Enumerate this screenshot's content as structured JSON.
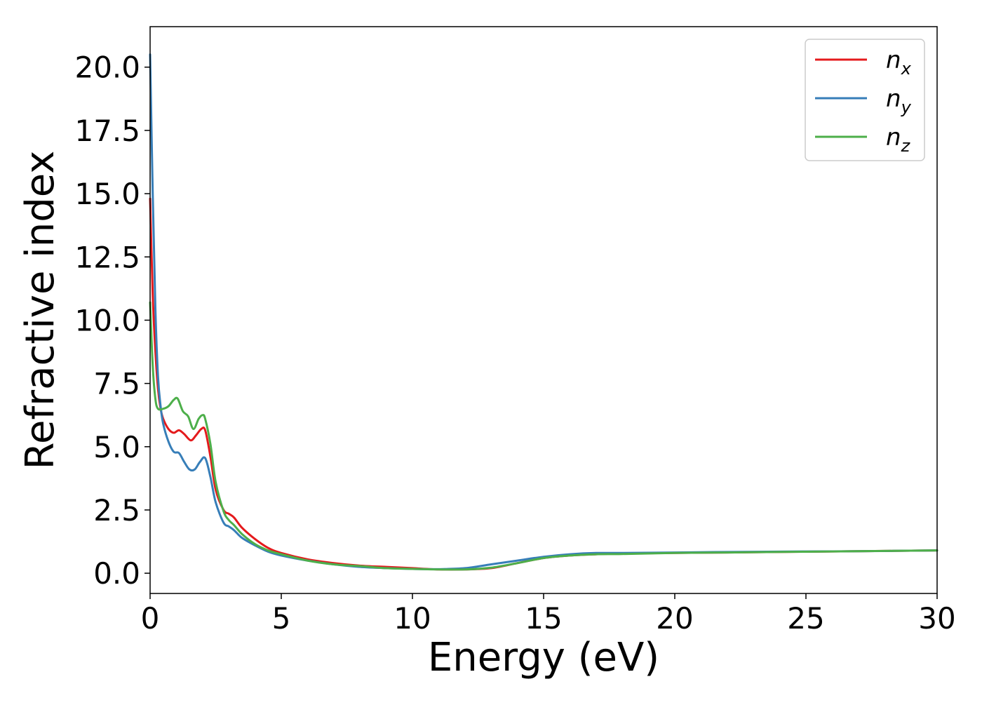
{
  "chart_data": {
    "type": "line",
    "title": "",
    "xlabel": "Energy (eV)",
    "ylabel": "Refractive index",
    "xlim": [
      0,
      30
    ],
    "ylim": [
      -0.8,
      21.6
    ],
    "x_ticks": [
      0,
      5,
      10,
      15,
      20,
      25,
      30
    ],
    "x_tick_labels": [
      "0",
      "5",
      "10",
      "15",
      "20",
      "25",
      "30"
    ],
    "y_ticks": [
      0.0,
      2.5,
      5.0,
      7.5,
      10.0,
      12.5,
      15.0,
      17.5,
      20.0
    ],
    "y_tick_labels": [
      "0.0",
      "2.5",
      "5.0",
      "7.5",
      "10.0",
      "12.5",
      "15.0",
      "17.5",
      "20.0"
    ],
    "grid": false,
    "legend_position": "top-right",
    "series": [
      {
        "name": "n_x",
        "label_main": "n",
        "label_sub": "x",
        "color": "#e41a1c",
        "points": [
          [
            0.0,
            14.8
          ],
          [
            0.1,
            11.0
          ],
          [
            0.2,
            8.8
          ],
          [
            0.3,
            7.3
          ],
          [
            0.4,
            6.5
          ],
          [
            0.5,
            6.1
          ],
          [
            0.7,
            5.7
          ],
          [
            0.9,
            5.55
          ],
          [
            1.1,
            5.65
          ],
          [
            1.3,
            5.5
          ],
          [
            1.55,
            5.25
          ],
          [
            1.75,
            5.45
          ],
          [
            1.95,
            5.7
          ],
          [
            2.1,
            5.65
          ],
          [
            2.3,
            4.6
          ],
          [
            2.5,
            3.3
          ],
          [
            2.8,
            2.5
          ],
          [
            3.0,
            2.35
          ],
          [
            3.2,
            2.2
          ],
          [
            3.5,
            1.8
          ],
          [
            4.0,
            1.35
          ],
          [
            4.5,
            1.0
          ],
          [
            5.0,
            0.8
          ],
          [
            6.0,
            0.55
          ],
          [
            7.0,
            0.4
          ],
          [
            8.0,
            0.3
          ],
          [
            9.0,
            0.25
          ],
          [
            10.0,
            0.2
          ],
          [
            11.0,
            0.15
          ],
          [
            12.0,
            0.15
          ],
          [
            13.0,
            0.2
          ],
          [
            14.0,
            0.4
          ],
          [
            15.0,
            0.6
          ],
          [
            16.0,
            0.7
          ],
          [
            17.0,
            0.75
          ],
          [
            18.0,
            0.78
          ],
          [
            20.0,
            0.8
          ],
          [
            22.0,
            0.82
          ],
          [
            25.0,
            0.85
          ],
          [
            27.0,
            0.87
          ],
          [
            30.0,
            0.9
          ]
        ]
      },
      {
        "name": "n_y",
        "label_main": "n",
        "label_sub": "y",
        "color": "#377eb8",
        "points": [
          [
            0.0,
            20.5
          ],
          [
            0.1,
            15.0
          ],
          [
            0.2,
            10.5
          ],
          [
            0.3,
            7.8
          ],
          [
            0.4,
            6.6
          ],
          [
            0.5,
            5.9
          ],
          [
            0.7,
            5.2
          ],
          [
            0.9,
            4.8
          ],
          [
            1.1,
            4.75
          ],
          [
            1.3,
            4.4
          ],
          [
            1.5,
            4.1
          ],
          [
            1.7,
            4.1
          ],
          [
            1.9,
            4.4
          ],
          [
            2.1,
            4.55
          ],
          [
            2.3,
            3.8
          ],
          [
            2.5,
            2.8
          ],
          [
            2.8,
            2.0
          ],
          [
            3.0,
            1.85
          ],
          [
            3.2,
            1.7
          ],
          [
            3.5,
            1.4
          ],
          [
            4.0,
            1.1
          ],
          [
            4.5,
            0.85
          ],
          [
            5.0,
            0.7
          ],
          [
            6.0,
            0.5
          ],
          [
            7.0,
            0.35
          ],
          [
            8.0,
            0.25
          ],
          [
            9.0,
            0.2
          ],
          [
            10.0,
            0.17
          ],
          [
            11.0,
            0.16
          ],
          [
            12.0,
            0.2
          ],
          [
            13.0,
            0.35
          ],
          [
            14.0,
            0.5
          ],
          [
            15.0,
            0.65
          ],
          [
            16.0,
            0.75
          ],
          [
            17.0,
            0.8
          ],
          [
            18.0,
            0.8
          ],
          [
            20.0,
            0.82
          ],
          [
            22.0,
            0.84
          ],
          [
            25.0,
            0.86
          ],
          [
            27.0,
            0.87
          ],
          [
            30.0,
            0.9
          ]
        ]
      },
      {
        "name": "n_z",
        "label_main": "n",
        "label_sub": "z",
        "color": "#4daf4a",
        "points": [
          [
            0.0,
            10.7
          ],
          [
            0.1,
            8.2
          ],
          [
            0.2,
            6.9
          ],
          [
            0.3,
            6.5
          ],
          [
            0.5,
            6.5
          ],
          [
            0.7,
            6.6
          ],
          [
            0.9,
            6.85
          ],
          [
            1.05,
            6.9
          ],
          [
            1.25,
            6.4
          ],
          [
            1.45,
            6.2
          ],
          [
            1.65,
            5.7
          ],
          [
            1.85,
            6.1
          ],
          [
            2.0,
            6.25
          ],
          [
            2.1,
            6.1
          ],
          [
            2.3,
            5.1
          ],
          [
            2.5,
            3.6
          ],
          [
            2.8,
            2.45
          ],
          [
            3.0,
            2.1
          ],
          [
            3.2,
            1.9
          ],
          [
            3.5,
            1.55
          ],
          [
            4.0,
            1.15
          ],
          [
            4.5,
            0.9
          ],
          [
            5.0,
            0.75
          ],
          [
            6.0,
            0.5
          ],
          [
            7.0,
            0.35
          ],
          [
            8.0,
            0.28
          ],
          [
            9.0,
            0.2
          ],
          [
            10.0,
            0.17
          ],
          [
            11.0,
            0.15
          ],
          [
            12.0,
            0.15
          ],
          [
            13.0,
            0.22
          ],
          [
            14.0,
            0.4
          ],
          [
            15.0,
            0.6
          ],
          [
            16.0,
            0.7
          ],
          [
            17.0,
            0.75
          ],
          [
            18.0,
            0.76
          ],
          [
            20.0,
            0.8
          ],
          [
            22.0,
            0.82
          ],
          [
            25.0,
            0.85
          ],
          [
            27.0,
            0.87
          ],
          [
            30.0,
            0.9
          ]
        ]
      }
    ]
  }
}
